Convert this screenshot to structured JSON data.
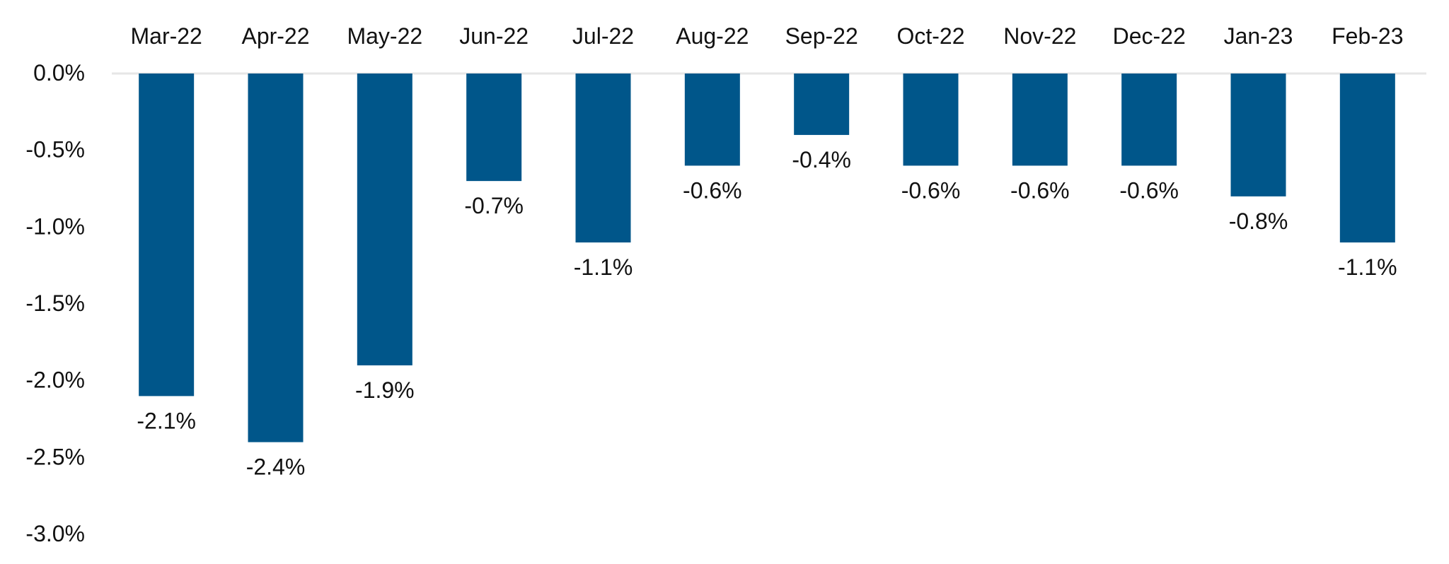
{
  "chart_data": {
    "type": "bar",
    "categories": [
      "Mar-22",
      "Apr-22",
      "May-22",
      "Jun-22",
      "Jul-22",
      "Aug-22",
      "Sep-22",
      "Oct-22",
      "Nov-22",
      "Dec-22",
      "Jan-23",
      "Feb-23"
    ],
    "values": [
      -2.1,
      -2.4,
      -1.9,
      -0.7,
      -1.1,
      -0.6,
      -0.4,
      -0.6,
      -0.6,
      -0.6,
      -0.8,
      -1.1
    ],
    "data_labels": [
      "-2.1%",
      "-2.4%",
      "-1.9%",
      "-0.7%",
      "-1.1%",
      "-0.6%",
      "-0.4%",
      "-0.6%",
      "-0.6%",
      "-0.6%",
      "-0.8%",
      "-1.1%"
    ],
    "y_ticks": [
      0.0,
      -0.5,
      -1.0,
      -1.5,
      -2.0,
      -2.5,
      -3.0
    ],
    "y_tick_labels": [
      "0.0%",
      "-0.5%",
      "-1.0%",
      "-1.5%",
      "-2.0%",
      "-2.5%",
      "-3.0%"
    ],
    "ylim": [
      -3.0,
      0.0
    ],
    "title": "",
    "xlabel": "",
    "ylabel": "",
    "category_axis_position": "top",
    "grid": false,
    "legend": "none",
    "colors": {
      "bar": "#00568A",
      "axis": "#E6E6E6",
      "text": "#111111"
    }
  }
}
